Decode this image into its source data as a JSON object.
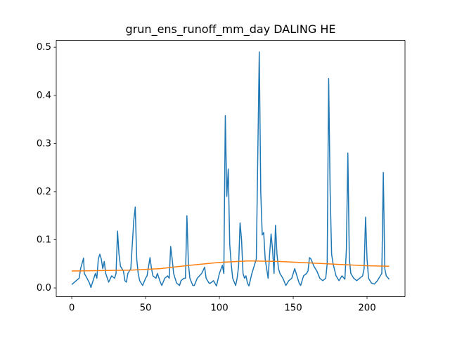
{
  "chart_data": {
    "type": "line",
    "title": "grun_ens_runoff_mm_day DALING HE",
    "xlim": [
      -10.5,
      225.7
    ],
    "ylim": [
      -0.018,
      0.514
    ],
    "xticks": [
      0,
      50,
      100,
      150,
      200
    ],
    "yticks": [
      {
        "value": 0,
        "label": "0.0"
      },
      0.1,
      0.2,
      0.3,
      0.4,
      0.5
    ],
    "series": [
      {
        "color": "#1f77b4",
        "x": [
          0,
          3,
          5,
          6,
          8,
          8.5,
          10,
          12,
          13,
          16,
          17,
          18,
          19,
          20,
          21,
          22,
          23,
          25,
          27,
          29,
          30,
          31,
          32,
          33,
          35,
          36,
          37,
          38,
          40,
          42,
          43,
          44,
          45,
          46,
          48,
          50,
          51,
          53,
          54,
          55,
          57,
          58,
          60,
          61,
          63,
          65,
          66,
          67,
          68,
          69,
          71,
          73,
          74,
          76,
          77,
          78,
          79,
          80,
          82,
          83,
          85,
          88,
          90,
          91,
          93,
          94,
          96,
          98,
          100,
          102,
          103,
          104,
          105,
          106,
          107,
          108,
          109,
          111,
          112,
          113,
          114,
          115,
          116,
          117,
          118,
          119,
          120,
          122,
          124,
          125,
          127,
          128,
          129,
          130,
          131,
          132,
          133,
          134,
          135,
          136,
          137,
          138,
          139,
          140,
          141,
          143,
          145,
          147,
          149,
          151,
          152,
          154,
          155,
          157,
          159,
          160,
          161,
          162,
          164,
          166,
          168,
          170,
          172,
          173,
          174,
          175,
          176,
          177,
          179,
          181,
          183,
          185,
          186,
          187,
          188,
          189,
          191,
          193,
          195,
          197,
          198,
          199,
          200,
          201,
          203,
          205,
          207,
          209,
          210,
          211,
          212,
          213,
          215
        ],
        "values": [
          0.007,
          0.015,
          0.02,
          0.04,
          0.062,
          0.03,
          0.022,
          0.01,
          0.001,
          0.03,
          0.02,
          0.06,
          0.07,
          0.06,
          0.04,
          0.055,
          0.03,
          0.012,
          0.025,
          0.02,
          0.03,
          0.118,
          0.07,
          0.045,
          0.035,
          0.015,
          0.012,
          0.03,
          0.04,
          0.14,
          0.168,
          0.06,
          0.03,
          0.015,
          0.005,
          0.02,
          0.025,
          0.063,
          0.04,
          0.025,
          0.02,
          0.03,
          0.012,
          0.005,
          0.02,
          0.025,
          0.02,
          0.086,
          0.06,
          0.03,
          0.01,
          0.005,
          0.015,
          0.02,
          0.02,
          0.15,
          0.05,
          0.02,
          0.005,
          0.005,
          0.02,
          0.03,
          0.043,
          0.02,
          0.01,
          0.01,
          0.015,
          0.004,
          0.03,
          0.047,
          0.03,
          0.358,
          0.19,
          0.247,
          0.09,
          0.05,
          0.02,
          0.005,
          0.02,
          0.045,
          0.135,
          0.1,
          0.03,
          0.02,
          0.025,
          0.01,
          0.004,
          0.03,
          0.05,
          0.06,
          0.49,
          0.2,
          0.11,
          0.115,
          0.06,
          0.04,
          0.02,
          0.07,
          0.112,
          0.08,
          0.03,
          0.13,
          0.07,
          0.04,
          0.03,
          0.02,
          0.005,
          0.015,
          0.02,
          0.04,
          0.03,
          0.01,
          0.005,
          0.025,
          0.03,
          0.035,
          0.063,
          0.06,
          0.045,
          0.035,
          0.02,
          0.015,
          0.02,
          0.05,
          0.435,
          0.2,
          0.07,
          0.05,
          0.025,
          0.015,
          0.025,
          0.018,
          0.08,
          0.28,
          0.06,
          0.03,
          0.02,
          0.015,
          0.02,
          0.025,
          0.04,
          0.147,
          0.06,
          0.02,
          0.01,
          0.008,
          0.015,
          0.025,
          0.03,
          0.24,
          0.04,
          0.025,
          0.018
        ]
      },
      {
        "color": "#ff7f0e",
        "x": [
          0,
          20,
          40,
          60,
          80,
          100,
          120,
          140,
          160,
          180,
          200,
          215
        ],
        "values": [
          0.035,
          0.036,
          0.037,
          0.04,
          0.047,
          0.053,
          0.056,
          0.055,
          0.052,
          0.049,
          0.046,
          0.045
        ]
      }
    ]
  }
}
